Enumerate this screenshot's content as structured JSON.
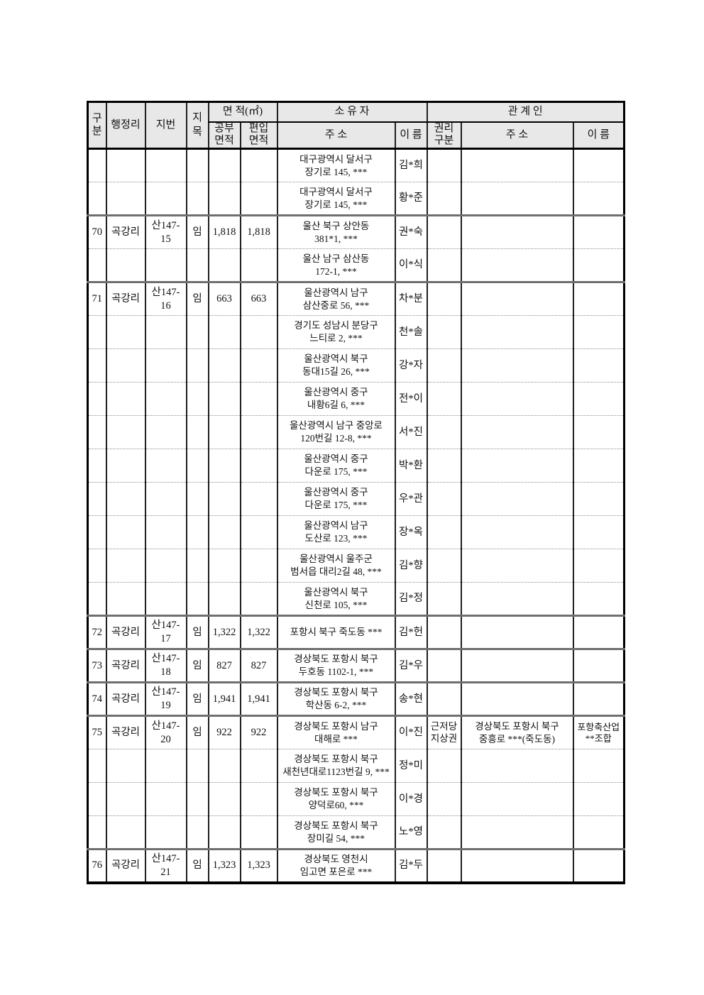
{
  "table": {
    "colors": {
      "header_bg": "#e8e8e8",
      "border_outer": "#000000",
      "border_vertical": "#1f1f1f",
      "separator_solid": "#6f6f6f",
      "separator_dotted": "#8f8f8f"
    },
    "header": {
      "gubun": "구\n분",
      "haengjeongni": "행정리",
      "jibun": "지번",
      "jimok": "지목",
      "area_group": "면    적(㎡)",
      "area_official": "공부\n면적",
      "area_incorporated": "편입\n면적",
      "owner_group": "소  유  자",
      "owner_address": "주  소",
      "owner_name": "이 름",
      "related_group": "관  계  인",
      "right_type": "권리\n구분",
      "related_address": "주  소",
      "related_name": "이 름"
    },
    "rows": [
      {
        "sep": "first",
        "no": "",
        "village": "",
        "lot": "",
        "jimok": "",
        "a1": "",
        "a2": "",
        "owner_addr": "대구광역시 달서구\n장기로 145, ***",
        "owner_name": "김*희",
        "right": "",
        "rel_addr": "",
        "rel_name": ""
      },
      {
        "sep": "dotted",
        "no": "",
        "village": "",
        "lot": "",
        "jimok": "",
        "a1": "",
        "a2": "",
        "owner_addr": "대구광역시 달서구\n장기로 145, ***",
        "owner_name": "황*준",
        "right": "",
        "rel_addr": "",
        "rel_name": ""
      },
      {
        "sep": "solid",
        "no": "70",
        "village": "곡강리",
        "lot": "산147-15",
        "jimok": "임",
        "a1": "1,818",
        "a2": "1,818",
        "owner_addr": "울산 북구 상안동\n381*1, ***",
        "owner_name": "권*숙",
        "right": "",
        "rel_addr": "",
        "rel_name": ""
      },
      {
        "sep": "dotted",
        "no": "",
        "village": "",
        "lot": "",
        "jimok": "",
        "a1": "",
        "a2": "",
        "owner_addr": "울산 남구 삼산동\n172-1, ***",
        "owner_name": "이*식",
        "right": "",
        "rel_addr": "",
        "rel_name": ""
      },
      {
        "sep": "solid",
        "no": "71",
        "village": "곡강리",
        "lot": "산147-16",
        "jimok": "임",
        "a1": "663",
        "a2": "663",
        "owner_addr": "울산광역시 남구\n삼산중로 56, ***",
        "owner_name": "차*분",
        "right": "",
        "rel_addr": "",
        "rel_name": ""
      },
      {
        "sep": "dotted",
        "no": "",
        "village": "",
        "lot": "",
        "jimok": "",
        "a1": "",
        "a2": "",
        "owner_addr": "경기도 성남시 분당구\n느티로 2, ***",
        "owner_name": "천*솔",
        "right": "",
        "rel_addr": "",
        "rel_name": ""
      },
      {
        "sep": "dotted",
        "no": "",
        "village": "",
        "lot": "",
        "jimok": "",
        "a1": "",
        "a2": "",
        "owner_addr": "울산광역시 북구\n동대15길 26, ***",
        "owner_name": "강*자",
        "right": "",
        "rel_addr": "",
        "rel_name": ""
      },
      {
        "sep": "dotted",
        "no": "",
        "village": "",
        "lot": "",
        "jimok": "",
        "a1": "",
        "a2": "",
        "owner_addr": "울산광역시 중구\n내황6길 6, ***",
        "owner_name": "전*이",
        "right": "",
        "rel_addr": "",
        "rel_name": ""
      },
      {
        "sep": "dotted",
        "no": "",
        "village": "",
        "lot": "",
        "jimok": "",
        "a1": "",
        "a2": "",
        "owner_addr": "울산광역시 남구 중앙로\n120번길 12-8, ***",
        "owner_name": "서*진",
        "right": "",
        "rel_addr": "",
        "rel_name": ""
      },
      {
        "sep": "dotted",
        "no": "",
        "village": "",
        "lot": "",
        "jimok": "",
        "a1": "",
        "a2": "",
        "owner_addr": "울산광역시 중구\n다운로 175, ***",
        "owner_name": "박*환",
        "right": "",
        "rel_addr": "",
        "rel_name": ""
      },
      {
        "sep": "dotted",
        "no": "",
        "village": "",
        "lot": "",
        "jimok": "",
        "a1": "",
        "a2": "",
        "owner_addr": "울산광역시 중구\n다운로 175, ***",
        "owner_name": "우*관",
        "right": "",
        "rel_addr": "",
        "rel_name": ""
      },
      {
        "sep": "dotted",
        "no": "",
        "village": "",
        "lot": "",
        "jimok": "",
        "a1": "",
        "a2": "",
        "owner_addr": "울산광역시 남구\n도산로 123, ***",
        "owner_name": "장*옥",
        "right": "",
        "rel_addr": "",
        "rel_name": ""
      },
      {
        "sep": "dotted",
        "no": "",
        "village": "",
        "lot": "",
        "jimok": "",
        "a1": "",
        "a2": "",
        "owner_addr": "울산광역시 울주군\n범서읍 대리2길 48, ***",
        "owner_name": "김*향",
        "right": "",
        "rel_addr": "",
        "rel_name": ""
      },
      {
        "sep": "dotted",
        "no": "",
        "village": "",
        "lot": "",
        "jimok": "",
        "a1": "",
        "a2": "",
        "owner_addr": "울산광역시 북구\n신천로 105, ***",
        "owner_name": "김*정",
        "right": "",
        "rel_addr": "",
        "rel_name": ""
      },
      {
        "sep": "solid",
        "no": "72",
        "village": "곡강리",
        "lot": "산147-17",
        "jimok": "임",
        "a1": "1,322",
        "a2": "1,322",
        "owner_addr": "포항시 북구 죽도동 ***",
        "owner_name": "김*헌",
        "right": "",
        "rel_addr": "",
        "rel_name": ""
      },
      {
        "sep": "solid",
        "no": "73",
        "village": "곡강리",
        "lot": "산147-18",
        "jimok": "임",
        "a1": "827",
        "a2": "827",
        "owner_addr": "경상북도 포항시 북구\n두호동 1102-1, ***",
        "owner_name": "김*우",
        "right": "",
        "rel_addr": "",
        "rel_name": ""
      },
      {
        "sep": "solid",
        "no": "74",
        "village": "곡강리",
        "lot": "산147-19",
        "jimok": "임",
        "a1": "1,941",
        "a2": "1,941",
        "owner_addr": "경상북도 포항시 북구\n학산동 6-2, ***",
        "owner_name": "송*현",
        "right": "",
        "rel_addr": "",
        "rel_name": ""
      },
      {
        "sep": "solid",
        "no": "75",
        "village": "곡강리",
        "lot": "산147-20",
        "jimok": "임",
        "a1": "922",
        "a2": "922",
        "owner_addr": "경상북도 포항시 남구\n대해로 ***",
        "owner_name": "이*진",
        "right": "근저당\n지상권",
        "rel_addr": "경상북도 포항시 북구\n중흥로 ***(죽도동)",
        "rel_name": "포항축산업\n**조합"
      },
      {
        "sep": "dotted",
        "no": "",
        "village": "",
        "lot": "",
        "jimok": "",
        "a1": "",
        "a2": "",
        "owner_addr": "경상북도 포항시 북구\n새천년대로1123번길 9, ***",
        "owner_name": "정*미",
        "right": "",
        "rel_addr": "",
        "rel_name": ""
      },
      {
        "sep": "dotted",
        "no": "",
        "village": "",
        "lot": "",
        "jimok": "",
        "a1": "",
        "a2": "",
        "owner_addr": "경상북도 포항시 북구\n양덕로60, ***",
        "owner_name": "이*경",
        "right": "",
        "rel_addr": "",
        "rel_name": ""
      },
      {
        "sep": "dotted",
        "no": "",
        "village": "",
        "lot": "",
        "jimok": "",
        "a1": "",
        "a2": "",
        "owner_addr": "경상북도 포항시 북구\n장미길 54, ***",
        "owner_name": "노*영",
        "right": "",
        "rel_addr": "",
        "rel_name": ""
      },
      {
        "sep": "solid",
        "no": "76",
        "village": "곡강리",
        "lot": "산147-21",
        "jimok": "임",
        "a1": "1,323",
        "a2": "1,323",
        "owner_addr": "경상북도 영천시\n임고면 포은로 ***",
        "owner_name": "김*두",
        "right": "",
        "rel_addr": "",
        "rel_name": ""
      }
    ]
  }
}
